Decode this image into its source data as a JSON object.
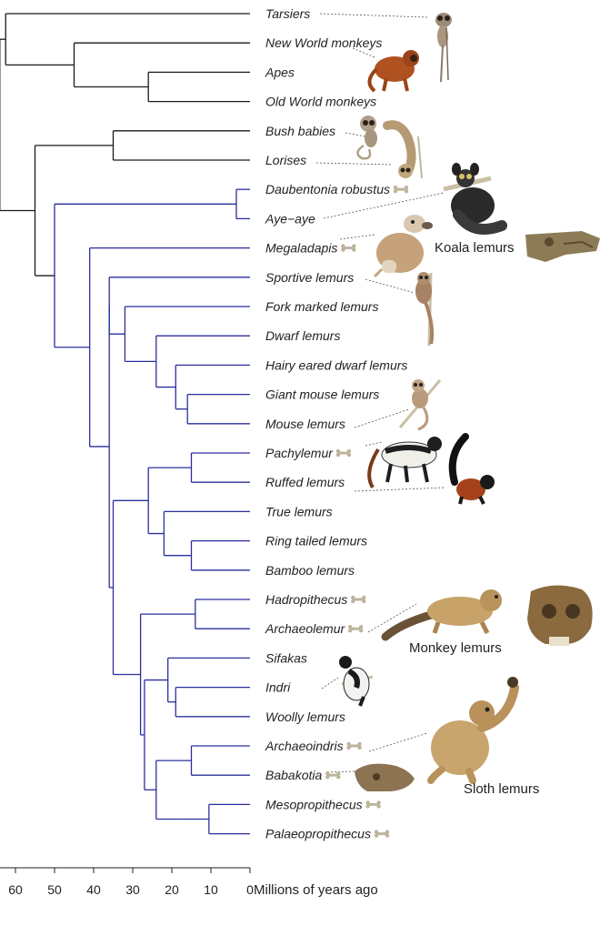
{
  "colors": {
    "primate_branch": "#1a1a1a",
    "lemur_branch": "#2b2f9c",
    "fur_brown": "#b5835a",
    "fur_dark": "#3a2f2a",
    "fur_red": "#a8431f",
    "skull": "#8a7a5a",
    "bone": "#c9c0a8"
  },
  "taxa": [
    {
      "name": "Tarsiers",
      "fossil": false
    },
    {
      "name": "New World monkeys",
      "fossil": false
    },
    {
      "name": "Apes",
      "fossil": false
    },
    {
      "name": "Old World monkeys",
      "fossil": false
    },
    {
      "name": "Bush babies",
      "fossil": false
    },
    {
      "name": "Lorises",
      "fossil": false
    },
    {
      "name": "Daubentonia robustus",
      "fossil": true
    },
    {
      "name": "Aye−aye",
      "fossil": false
    },
    {
      "name": "Megaladapis",
      "fossil": true
    },
    {
      "name": "Sportive lemurs",
      "fossil": false
    },
    {
      "name": "Fork marked lemurs",
      "fossil": false
    },
    {
      "name": "Dwarf lemurs",
      "fossil": false
    },
    {
      "name": "Hairy eared dwarf lemurs",
      "fossil": false
    },
    {
      "name": "Giant mouse lemurs",
      "fossil": false
    },
    {
      "name": "Mouse lemurs",
      "fossil": false
    },
    {
      "name": "Pachylemur",
      "fossil": true
    },
    {
      "name": "Ruffed lemurs",
      "fossil": false
    },
    {
      "name": "True lemurs",
      "fossil": false
    },
    {
      "name": "Ring tailed lemurs",
      "fossil": false
    },
    {
      "name": "Bamboo lemurs",
      "fossil": false
    },
    {
      "name": "Hadropithecus",
      "fossil": true
    },
    {
      "name": "Archaeolemur",
      "fossil": true
    },
    {
      "name": "Sifakas",
      "fossil": false
    },
    {
      "name": "Indri",
      "fossil": false
    },
    {
      "name": "Woolly lemurs",
      "fossil": false
    },
    {
      "name": "Archaeoindris",
      "fossil": true
    },
    {
      "name": "Babakotia",
      "fossil": true
    },
    {
      "name": "Mesopropithecus",
      "fossil": true
    },
    {
      "name": "Palaeopropithecus",
      "fossil": true
    }
  ],
  "group_labels": {
    "koala": "Koala lemurs",
    "monkey": "Monkey lemurs",
    "sloth": "Sloth lemurs"
  },
  "axis": {
    "ticks": [
      60,
      50,
      40,
      30,
      20,
      10,
      0
    ],
    "title": "Millions of years ago"
  },
  "illustrations": {
    "tarsier": "tarsier-illustration",
    "new_world_monkey": "new-world-monkey-illustration",
    "bush_baby": "bush-baby-illustration",
    "loris": "loris-illustration",
    "aye_aye": "aye-aye-illustration",
    "megaladapis": "megaladapis-illustration",
    "koala_skull": "koala-lemur-skull-illustration",
    "sportive_lemur": "sportive-lemur-illustration",
    "mouse_lemur": "mouse-lemur-illustration",
    "pachylemur": "pachylemur-illustration",
    "ruffed_lemur": "ruffed-lemur-illustration",
    "archaeolemur": "archaeolemur-illustration",
    "monkey_skull": "monkey-lemur-skull-illustration",
    "indri": "indri-illustration",
    "sloth_lemur": "sloth-lemur-illustration",
    "babakotia_skull": "babakotia-skull-illustration",
    "fossil_bone": "bone-icon"
  }
}
